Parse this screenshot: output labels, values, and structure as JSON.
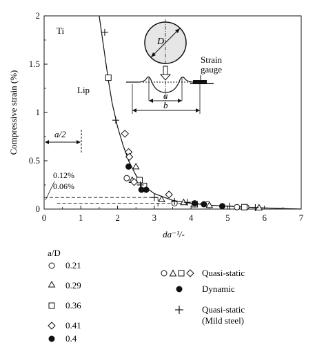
{
  "chart_data": {
    "type": "scatter",
    "xlabel": "da⁻¹/-",
    "ylabel": "Compressive strain (%)",
    "xlim": [
      0,
      7
    ],
    "ylim": [
      0,
      2
    ],
    "x_ticks": [
      "0",
      "1",
      "2",
      "3",
      "4",
      "5",
      "6",
      "7"
    ],
    "y_ticks": [
      "0",
      "0.5",
      "1",
      "1.5",
      "2"
    ],
    "grid": false,
    "legend_placement": "bottom",
    "annotations": {
      "material": "Ti",
      "lip": "Lip",
      "half_width": "a/2",
      "level_high": "0.12%",
      "level_low": "0.06%",
      "diameter": "D",
      "gauge": [
        "Strain",
        "gauge"
      ],
      "dim_a": "a",
      "dim_b": "b"
    },
    "legend": {
      "title": "a/D",
      "series_entries": [
        "0.21",
        "0.29",
        "0.36",
        "0.41",
        "0.4"
      ],
      "type_entries": [
        "Quasi-static",
        "Dynamic",
        "Quasi-static",
        "(Mild steel)"
      ]
    },
    "reference_lines": [
      0.12,
      0.06
    ],
    "series": [
      {
        "name": "0.21",
        "marker": "circle-open",
        "points": [
          [
            2.25,
            0.32
          ],
          [
            3.55,
            0.06
          ],
          [
            4.45,
            0.05
          ],
          [
            5.25,
            0.02
          ],
          [
            5.5,
            0.02
          ]
        ]
      },
      {
        "name": "0.29",
        "marker": "triangle-open",
        "points": [
          [
            2.5,
            0.44
          ],
          [
            2.4,
            0.3
          ],
          [
            3.2,
            0.1
          ],
          [
            3.8,
            0.07
          ],
          [
            4.5,
            0.04
          ],
          [
            5.85,
            0.015
          ]
        ]
      },
      {
        "name": "0.36",
        "marker": "square-open",
        "points": [
          [
            1.75,
            1.36
          ],
          [
            2.6,
            0.3
          ],
          [
            2.72,
            0.24
          ],
          [
            4.1,
            0.05
          ],
          [
            5.45,
            0.02
          ]
        ]
      },
      {
        "name": "0.41",
        "marker": "diamond-open",
        "points": [
          [
            2.2,
            0.78
          ],
          [
            2.3,
            0.59
          ],
          [
            2.32,
            0.54
          ],
          [
            2.45,
            0.28
          ],
          [
            3.4,
            0.15
          ]
        ]
      },
      {
        "name": "0.4",
        "marker": "circle-filled",
        "points": [
          [
            2.3,
            0.44
          ],
          [
            2.65,
            0.2
          ],
          [
            2.78,
            0.2
          ],
          [
            4.1,
            0.06
          ],
          [
            4.35,
            0.05
          ],
          [
            4.85,
            0.03
          ]
        ]
      },
      {
        "name": "Quasi-static (Mild steel)",
        "marker": "plus",
        "points": [
          [
            1.65,
            1.83
          ],
          [
            1.95,
            0.92
          ],
          [
            2.62,
            0.25
          ],
          [
            3.0,
            0.12
          ],
          [
            3.55,
            0.08
          ],
          [
            3.9,
            0.07
          ],
          [
            5.05,
            0.03
          ],
          [
            5.75,
            0.015
          ]
        ]
      }
    ],
    "fit_curve": {
      "x": [
        1.5,
        1.65,
        1.75,
        1.85,
        2.0,
        2.15,
        2.3,
        2.5,
        2.75,
        3.0,
        3.5,
        4.0,
        4.5,
        5.0,
        5.5,
        6.0,
        6.5,
        7.0
      ],
      "y": [
        2.0,
        1.6,
        1.33,
        1.1,
        0.85,
        0.66,
        0.5,
        0.35,
        0.23,
        0.16,
        0.09,
        0.06,
        0.04,
        0.03,
        0.02,
        0.012,
        0.006,
        0.0
      ]
    }
  }
}
